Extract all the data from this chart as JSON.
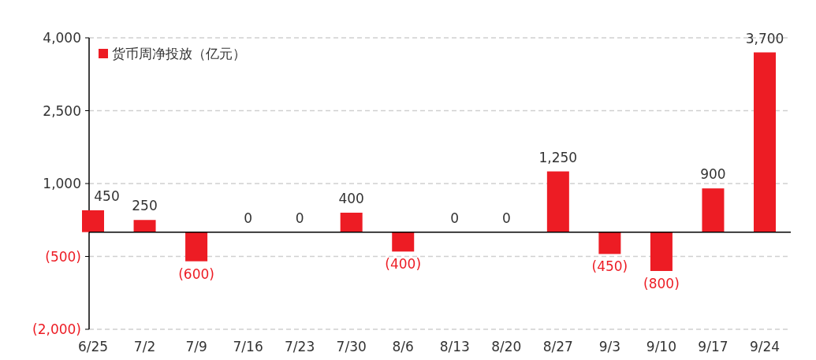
{
  "chart_data": {
    "type": "bar",
    "categories": [
      "6/25",
      "7/2",
      "7/9",
      "7/16",
      "7/23",
      "7/30",
      "8/6",
      "8/13",
      "8/20",
      "8/27",
      "9/3",
      "9/10",
      "9/17",
      "9/24"
    ],
    "series": [
      {
        "name": "货币周净投放（亿元）",
        "color": "#ed1c24",
        "values": [
          450,
          250,
          -600,
          0,
          0,
          400,
          -400,
          0,
          0,
          1250,
          -450,
          -800,
          900,
          3700
        ],
        "value_labels": [
          "450",
          "250",
          "(600)",
          "0",
          "0",
          "400",
          "(400)",
          "0",
          "0",
          "1,250",
          "(450)",
          "(800)",
          "900",
          "3,700"
        ]
      }
    ],
    "ylim": [
      -2000,
      4000
    ],
    "yticks": [
      {
        "value": 4000,
        "label": "4,000"
      },
      {
        "value": 2500,
        "label": "2,500"
      },
      {
        "value": 1000,
        "label": "1,000"
      },
      {
        "value": -500,
        "label": "(500)"
      },
      {
        "value": -2000,
        "label": "(2,000)"
      }
    ],
    "grid": "y",
    "legend": "top left"
  }
}
